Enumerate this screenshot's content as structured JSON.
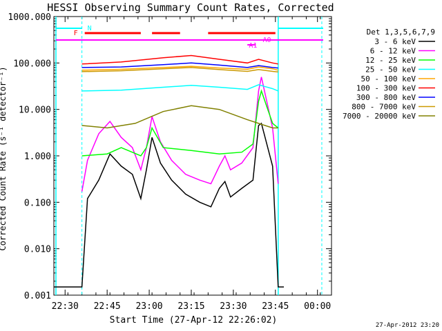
{
  "chart_data": {
    "type": "line",
    "title": "HESSI Observing Summary Count Rates, Corrected",
    "xlabel": "Start Time (27-Apr-12 22:26:02)",
    "ylabel": "Corrected Count Rate (s⁻¹ detector⁻¹)",
    "y_scale": "log",
    "ylim": [
      0.001,
      1000
    ],
    "xlim": [
      "22:26",
      "00:05"
    ],
    "x_ticks": [
      "22:30",
      "22:45",
      "23:00",
      "23:15",
      "23:30",
      "23:45",
      "00:00"
    ],
    "y_ticks": [
      "0.001",
      "0.010",
      "0.100",
      "1.000",
      "10.000",
      "100.000",
      "1000.000"
    ],
    "legend_title": "Det 1,3,5,6,7,9",
    "legend_position": "right",
    "timestamp": "27-Apr-2012 23:20",
    "series": [
      {
        "name": "3 - 6 keV",
        "color": "#000000",
        "x": [
          "22:26",
          "22:36",
          "22:38",
          "22:42",
          "22:46",
          "22:50",
          "22:54",
          "22:57",
          "22:59",
          "23:01",
          "23:04",
          "23:08",
          "23:13",
          "23:18",
          "23:22",
          "23:25",
          "23:27",
          "23:29",
          "23:33",
          "23:37",
          "23:39",
          "23:40",
          "23:44",
          "23:46",
          "23:48"
        ],
        "y": [
          0.0015,
          0.0015,
          0.12,
          0.3,
          1.1,
          0.6,
          0.4,
          0.12,
          0.5,
          2.5,
          0.7,
          0.3,
          0.15,
          0.1,
          0.08,
          0.2,
          0.28,
          0.13,
          0.2,
          0.3,
          4.5,
          5.0,
          0.6,
          0.0015,
          0.0015
        ]
      },
      {
        "name": "6 - 12 keV",
        "color": "#ff00ff",
        "x": [
          "22:36",
          "22:38",
          "22:42",
          "22:46",
          "22:50",
          "22:54",
          "22:57",
          "22:59",
          "23:01",
          "23:04",
          "23:08",
          "23:13",
          "23:18",
          "23:22",
          "23:25",
          "23:27",
          "23:29",
          "23:33",
          "23:37",
          "23:39",
          "23:40",
          "23:44",
          "23:46"
        ],
        "y": [
          0.17,
          0.8,
          3.0,
          5.5,
          2.5,
          1.5,
          0.5,
          1.5,
          7.0,
          2.0,
          0.8,
          0.4,
          0.3,
          0.25,
          0.6,
          1.0,
          0.5,
          0.7,
          1.5,
          25,
          50,
          4.0,
          0.25
        ]
      },
      {
        "name": "12 - 25 keV",
        "color": "#00ff00",
        "x": [
          "22:36",
          "22:45",
          "22:50",
          "22:57",
          "22:59",
          "23:01",
          "23:05",
          "23:15",
          "23:25",
          "23:33",
          "23:37",
          "23:39",
          "23:40",
          "23:44",
          "23:46"
        ],
        "y": [
          1.0,
          1.1,
          1.5,
          1.0,
          1.5,
          4.0,
          1.5,
          1.3,
          1.1,
          1.2,
          1.8,
          15,
          25,
          5.0,
          4.0
        ]
      },
      {
        "name": "25 - 50 keV",
        "color": "#00ffff",
        "x": [
          "22:36",
          "22:50",
          "23:05",
          "23:15",
          "23:25",
          "23:35",
          "23:39",
          "23:44",
          "23:46"
        ],
        "y": [
          25,
          26,
          30,
          33,
          30,
          27,
          34,
          28,
          25
        ]
      },
      {
        "name": "50 - 100 keV",
        "color": "#ffa500",
        "x": [
          "22:36",
          "22:50",
          "23:05",
          "23:15",
          "23:25",
          "23:35",
          "23:39",
          "23:44",
          "23:46"
        ],
        "y": [
          70,
          73,
          80,
          85,
          78,
          73,
          82,
          75,
          70
        ]
      },
      {
        "name": "100 - 300 keV",
        "color": "#ff0000",
        "x": [
          "22:36",
          "22:50",
          "23:05",
          "23:15",
          "23:25",
          "23:35",
          "23:39",
          "23:44",
          "23:46"
        ],
        "y": [
          95,
          105,
          130,
          145,
          120,
          100,
          120,
          100,
          95
        ]
      },
      {
        "name": "300 - 800 keV",
        "color": "#0000ff",
        "x": [
          "22:36",
          "22:50",
          "23:05",
          "23:15",
          "23:25",
          "23:35",
          "23:39",
          "23:44",
          "23:46"
        ],
        "y": [
          80,
          82,
          92,
          100,
          90,
          80,
          88,
          80,
          78
        ]
      },
      {
        "name": "800 - 7000 keV",
        "color": "#cc9900",
        "x": [
          "22:36",
          "22:50",
          "23:05",
          "23:15",
          "23:25",
          "23:35",
          "23:39",
          "23:44",
          "23:46"
        ],
        "y": [
          65,
          68,
          75,
          80,
          72,
          66,
          72,
          66,
          64
        ]
      },
      {
        "name": "7000 - 20000 keV",
        "color": "#808000",
        "x": [
          "22:36",
          "22:45",
          "22:55",
          "23:05",
          "23:15",
          "23:25",
          "23:35",
          "23:39",
          "23:44",
          "23:46"
        ],
        "y": [
          4.5,
          4.0,
          5.0,
          9.0,
          12,
          10,
          6.0,
          5.0,
          4.0,
          4.0
        ]
      }
    ],
    "annotations": {
      "flags": [
        {
          "label": "N",
          "color": "#00ffff",
          "at": "22:36"
        },
        {
          "label": "F",
          "color": "#ff0000",
          "at": "22:36"
        },
        {
          "label": "A1",
          "color": "#ff00ff",
          "at": "23:38"
        },
        {
          "label": "A0",
          "color": "#ff00ff",
          "at": "23:40"
        }
      ]
    }
  }
}
